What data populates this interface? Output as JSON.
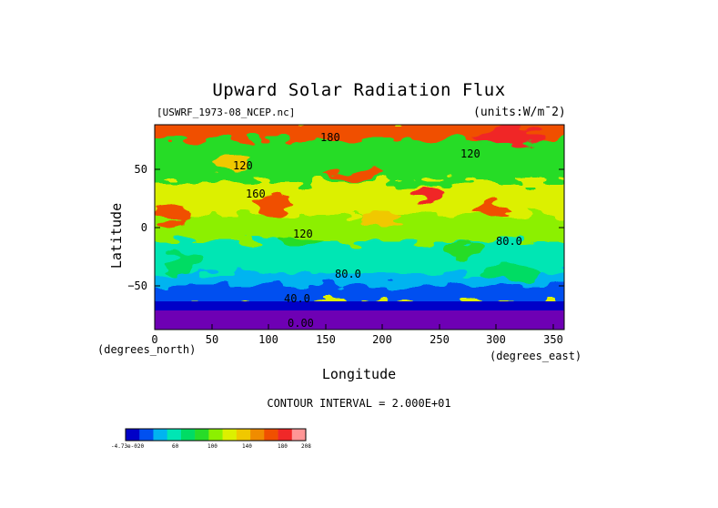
{
  "chart_data": {
    "type": "heatmap",
    "title": "Upward Solar Radiation Flux",
    "dataset_label": "[USWRF_1973-08_NCEP.nc]",
    "units_label": "(units:W/m¯2)",
    "xlabel": "Longitude",
    "ylabel": "Latitude",
    "x_unit_note": "(degrees_east)",
    "y_unit_note": "(degrees_north)",
    "xlim": [
      0,
      360
    ],
    "ylim": [
      -90,
      90
    ],
    "x_ticks": [
      "0",
      "50",
      "100",
      "150",
      "200",
      "250",
      "300",
      "350"
    ],
    "y_ticks": [
      "50",
      "0",
      "−50"
    ],
    "contour_interval_text": "CONTOUR INTERVAL = 2.000E+01",
    "contour_labels": [
      "180",
      "120",
      "120",
      "160",
      "120",
      "80.0",
      "40.0",
      "0.00",
      "80.0"
    ],
    "colorbar": {
      "tick_labels": [
        "-4.73e-020",
        "60",
        "100",
        "140",
        "180",
        "208"
      ],
      "colors": [
        "#0000c8",
        "#0050f0",
        "#00b4f0",
        "#00e6b4",
        "#00dc64",
        "#28dc28",
        "#8cf000",
        "#dcf000",
        "#f0c800",
        "#f08c00",
        "#f05000",
        "#f02828",
        "#ff9696"
      ]
    },
    "zonal_bands": [
      {
        "lat_range": [
          60,
          90
        ],
        "value": 180
      },
      {
        "lat_range": [
          30,
          60
        ],
        "value": 120
      },
      {
        "lat_range": [
          0,
          30
        ],
        "value": 140
      },
      {
        "lat_range": [
          -30,
          0
        ],
        "value": 110
      },
      {
        "lat_range": [
          -55,
          -30
        ],
        "value": 80
      },
      {
        "lat_range": [
          -70,
          -55
        ],
        "value": 40
      },
      {
        "lat_range": [
          -90,
          -70
        ],
        "value": 0
      }
    ]
  }
}
